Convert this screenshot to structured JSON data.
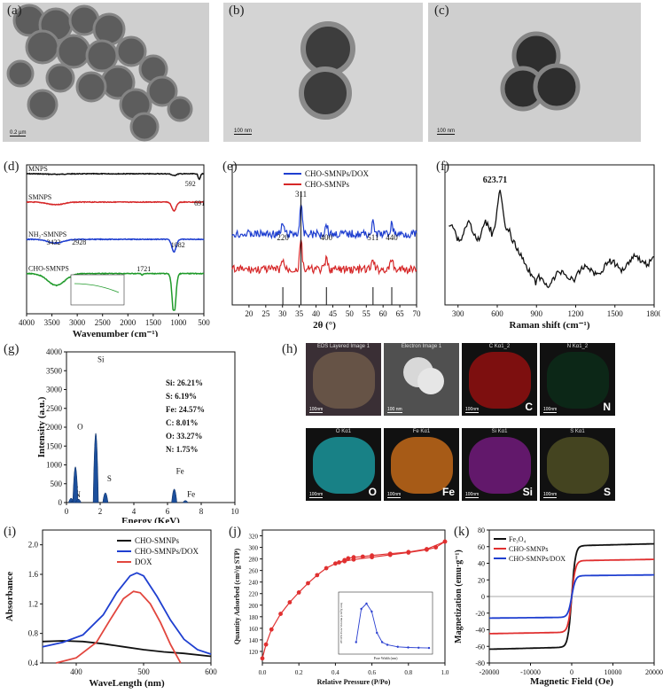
{
  "panels": {
    "a": {
      "label": "(a)",
      "scale": "0.2 µm"
    },
    "b": {
      "label": "(b)",
      "scale": "100 nm"
    },
    "c": {
      "label": "(c)",
      "scale": "100 nm"
    },
    "d": {
      "label": "(d)"
    },
    "e": {
      "label": "(e)"
    },
    "f": {
      "label": "(f)"
    },
    "g": {
      "label": "(g)"
    },
    "h": {
      "label": "(h)"
    },
    "i": {
      "label": "(i)"
    },
    "j": {
      "label": "(j)"
    },
    "k": {
      "label": "(k)"
    }
  },
  "chart_data": [
    {
      "id": "d",
      "type": "line",
      "xlabel": "Wavenumber (cm⁻¹)",
      "xlim": [
        4000,
        500
      ],
      "reversed_x": true,
      "x_ticks": [
        4000,
        3500,
        3000,
        2500,
        2000,
        1500,
        1000,
        500
      ],
      "series": [
        {
          "name": "MNPS",
          "color": "#111111",
          "offset": 0.06
        },
        {
          "name": "SMNPS",
          "color": "#d62728",
          "offset": 0.25
        },
        {
          "name": "NH₂-SMNPS",
          "color": "#1f3fd0",
          "offset": 0.5
        },
        {
          "name": "CHO-SMNPS",
          "color": "#1f9a2a",
          "offset": 0.73
        }
      ],
      "annotations": [
        "592",
        "691",
        "1082",
        "3432",
        "2928",
        "1721"
      ]
    },
    {
      "id": "e",
      "type": "line",
      "xlabel": "2θ (°)",
      "xlim": [
        15,
        70
      ],
      "x_ticks": [
        20,
        25,
        30,
        35,
        40,
        45,
        50,
        55,
        60,
        65,
        70
      ],
      "series": [
        {
          "name": "CHO-SMNPs/DOX",
          "color": "#1f3fd0"
        },
        {
          "name": "CHO-SMNPs",
          "color": "#d62728"
        }
      ],
      "reference_lines": [
        30.1,
        35.5,
        43.1,
        57.0,
        62.6
      ],
      "peak_labels": [
        {
          "x": 35.5,
          "text": "311"
        },
        {
          "x": 30.1,
          "text": "220"
        },
        {
          "x": 43.1,
          "text": "400"
        },
        {
          "x": 57.0,
          "text": "511"
        },
        {
          "x": 62.6,
          "text": "440"
        }
      ]
    },
    {
      "id": "f",
      "type": "line",
      "xlabel": "Raman shift (cm⁻¹)",
      "xlim": [
        200,
        1800
      ],
      "x_ticks": [
        300,
        600,
        900,
        1200,
        1500,
        1800
      ],
      "peak_label": {
        "x": 623.71,
        "text": "623.71"
      },
      "series": [
        {
          "name": "",
          "color": "#111111"
        }
      ]
    },
    {
      "id": "g",
      "type": "bar",
      "xlabel": "Energy (KeV)",
      "ylabel": "Intensity (a.u.)",
      "xlim": [
        0,
        10
      ],
      "ylim": [
        0,
        4000
      ],
      "x_ticks": [
        0,
        2,
        4,
        6,
        8,
        10
      ],
      "y_ticks": [
        0,
        500,
        1000,
        1500,
        2000,
        2500,
        3000,
        3500,
        4000
      ],
      "peaks": [
        {
          "x": 0.28,
          "y": 230,
          "label": "C"
        },
        {
          "x": 0.39,
          "y": 90,
          "label": "N"
        },
        {
          "x": 0.53,
          "y": 1900,
          "label": "O"
        },
        {
          "x": 0.71,
          "y": 180,
          "label": ""
        },
        {
          "x": 1.74,
          "y": 3680,
          "label": "Si"
        },
        {
          "x": 2.31,
          "y": 520,
          "label": "S"
        },
        {
          "x": 6.4,
          "y": 720,
          "label": "Fe"
        },
        {
          "x": 7.06,
          "y": 110,
          "label": "Fe"
        }
      ],
      "composition": [
        "Si: 26.21%",
        "S: 6.19%",
        "Fe: 24.57%",
        "C: 8.01%",
        "O: 33.27%",
        "N: 1.75%"
      ]
    },
    {
      "id": "i",
      "type": "line",
      "xlabel": "WaveLength (nm)",
      "ylabel": "Absorbance",
      "xlim": [
        350,
        600
      ],
      "ylim": [
        0.4,
        2.2
      ],
      "x_ticks": [
        400,
        500,
        600
      ],
      "y_ticks": [
        0.4,
        0.8,
        1.2,
        1.6,
        2.0
      ],
      "series": [
        {
          "name": "CHO-SMNPs",
          "color": "#111111",
          "x": [
            350,
            380,
            410,
            440,
            470,
            500,
            530,
            560,
            600
          ],
          "values": [
            0.69,
            0.7,
            0.69,
            0.66,
            0.62,
            0.58,
            0.55,
            0.53,
            0.49
          ]
        },
        {
          "name": "CHO-SMNPs/DOX",
          "color": "#1f3fd0",
          "x": [
            350,
            380,
            410,
            440,
            460,
            480,
            490,
            500,
            520,
            540,
            560,
            580,
            600
          ],
          "values": [
            0.62,
            0.68,
            0.78,
            1.05,
            1.35,
            1.58,
            1.62,
            1.58,
            1.3,
            0.98,
            0.72,
            0.58,
            0.52
          ]
        },
        {
          "name": "DOX",
          "color": "#e2463e",
          "x": [
            370,
            400,
            430,
            450,
            470,
            485,
            495,
            510,
            525,
            540,
            555
          ],
          "values": [
            0.4,
            0.47,
            0.68,
            0.98,
            1.27,
            1.37,
            1.35,
            1.2,
            0.95,
            0.65,
            0.4
          ]
        }
      ]
    },
    {
      "id": "j",
      "type": "line",
      "xlabel": "Relative Pressure (P/Po)",
      "ylabel": "Quantity Adsorbed (cm³/g STP)",
      "xlim": [
        0,
        1.0
      ],
      "ylim": [
        100,
        330
      ],
      "x_ticks": [
        0.0,
        0.2,
        0.4,
        0.6,
        0.8,
        1.0
      ],
      "y_ticks": [
        120,
        140,
        160,
        180,
        200,
        220,
        240,
        260,
        280,
        300,
        320
      ],
      "series": [
        {
          "name": "adsorption",
          "color": "#e03030",
          "x": [
            0.0,
            0.02,
            0.05,
            0.1,
            0.15,
            0.2,
            0.25,
            0.3,
            0.35,
            0.4,
            0.45,
            0.5,
            0.6,
            0.7,
            0.8,
            0.9,
            0.95,
            1.0
          ],
          "values": [
            108,
            132,
            158,
            185,
            205,
            222,
            238,
            252,
            264,
            272,
            276,
            279,
            283,
            287,
            291,
            296,
            300,
            310
          ]
        },
        {
          "name": "desorption",
          "color": "#e03030",
          "x": [
            1.0,
            0.9,
            0.8,
            0.7,
            0.6,
            0.55,
            0.5,
            0.47,
            0.45,
            0.42
          ],
          "values": [
            310,
            297,
            292,
            289,
            286,
            284,
            283,
            281,
            278,
            274
          ]
        }
      ],
      "inset": {
        "xlabel": "Pore Width (nm)",
        "ylabel": "dV/dW Pore Volume (cm³/g·nm)",
        "x": [
          1,
          1.5,
          2,
          2.5,
          3,
          3.5,
          4,
          5,
          6,
          7,
          8
        ],
        "values": [
          0.05,
          0.3,
          0.34,
          0.28,
          0.12,
          0.05,
          0.03,
          0.015,
          0.01,
          0.008,
          0.006
        ]
      }
    },
    {
      "id": "k",
      "type": "line",
      "xlabel": "Magnetic Field (Oe)",
      "ylabel": "Magnetization (emu·g⁻¹)",
      "xlim": [
        -20000,
        20000
      ],
      "ylim": [
        -80,
        80
      ],
      "x_ticks": [
        -20000,
        -10000,
        0,
        10000,
        20000
      ],
      "y_ticks": [
        -80,
        -60,
        -40,
        -20,
        0,
        20,
        40,
        60,
        80
      ],
      "series": [
        {
          "name": "Fe₃O₄",
          "color": "#111111",
          "ms": 61
        },
        {
          "name": "CHO-SMNPs",
          "color": "#e03030",
          "ms": 43
        },
        {
          "name": "CHO-SMNPs/DOX",
          "color": "#1f3fd0",
          "ms": 25
        }
      ]
    }
  ],
  "eds": {
    "tiles": [
      {
        "title": "EDS Layered Image 1",
        "el": "",
        "color": "#6b5848",
        "scale": "100nm"
      },
      {
        "title": "Electron Image 1",
        "el": "",
        "color": "#4a4a4a",
        "scale": "100 nm"
      },
      {
        "title": "C Kα1_2",
        "el": "C",
        "color": "#8a1010",
        "scale": "100nm"
      },
      {
        "title": "N Kα1_2",
        "el": "N",
        "color": "#0c2a18",
        "scale": "100nm"
      },
      {
        "title": "O Kα1",
        "el": "O",
        "color": "#1a8e94",
        "scale": "100nm"
      },
      {
        "title": "Fe Kα1",
        "el": "Fe",
        "color": "#b86418",
        "scale": "100nm"
      },
      {
        "title": "Si Kα1",
        "el": "Si",
        "color": "#6b1a76",
        "scale": "100nm"
      },
      {
        "title": "S Kα1",
        "el": "S",
        "color": "#4a4a22",
        "scale": "100nm"
      }
    ]
  }
}
